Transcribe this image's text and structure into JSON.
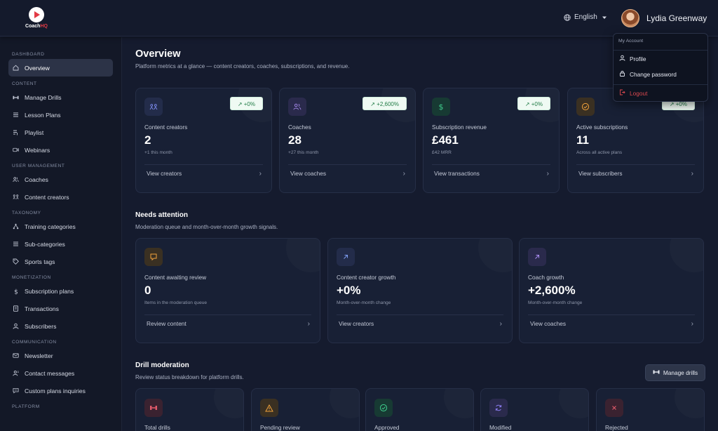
{
  "app": {
    "name_part1": "Coach",
    "name_part2": "HQ"
  },
  "header": {
    "language": "English",
    "user_name": "Lydia Greenway"
  },
  "account_menu": {
    "heading": "My Account",
    "profile": "Profile",
    "change_password": "Change password",
    "logout": "Logout"
  },
  "sidebar": {
    "sections": [
      {
        "title": "DASHBOARD",
        "items": [
          {
            "label": "Overview",
            "icon": "home-icon",
            "active": true
          }
        ]
      },
      {
        "title": "CONTENT",
        "items": [
          {
            "label": "Manage Drills",
            "icon": "dumbbell-icon"
          },
          {
            "label": "Lesson Plans",
            "icon": "list-icon"
          },
          {
            "label": "Playlist",
            "icon": "playlist-icon"
          },
          {
            "label": "Webinars",
            "icon": "video-icon"
          }
        ]
      },
      {
        "title": "USER MANAGEMENT",
        "items": [
          {
            "label": "Coaches",
            "icon": "users-icon"
          },
          {
            "label": "Content creators",
            "icon": "creators-icon"
          }
        ]
      },
      {
        "title": "TAXONOMY",
        "items": [
          {
            "label": "Training categories",
            "icon": "hierarchy-icon"
          },
          {
            "label": "Sub-categories",
            "icon": "list-icon"
          },
          {
            "label": "Sports tags",
            "icon": "tag-icon"
          }
        ]
      },
      {
        "title": "MONETIZATION",
        "items": [
          {
            "label": "Subscription plans",
            "icon": "dollar-icon"
          },
          {
            "label": "Transactions",
            "icon": "receipt-icon"
          },
          {
            "label": "Subscribers",
            "icon": "user-icon"
          }
        ]
      },
      {
        "title": "COMMUNICATION",
        "items": [
          {
            "label": "Newsletter",
            "icon": "mail-icon"
          },
          {
            "label": "Contact messages",
            "icon": "contact-icon"
          },
          {
            "label": "Custom plans inquiries",
            "icon": "chat-icon"
          }
        ]
      },
      {
        "title": "PLATFORM",
        "items": []
      }
    ]
  },
  "overview": {
    "title": "Overview",
    "subtitle": "Platform metrics at a glance — content creators, coaches, subscriptions, and revenue."
  },
  "metrics": [
    {
      "label": "Content creators",
      "value": "2",
      "note": "+1 this month",
      "badge": "↗ +0%",
      "link": "View creators",
      "icon_color": "#7d8cf0",
      "icon_bg": "#232c4a"
    },
    {
      "label": "Coaches",
      "value": "28",
      "note": "+27 this month",
      "badge": "↗ +2,600%",
      "link": "View coaches",
      "icon_color": "#a98cf0",
      "icon_bg": "#2a2a4c"
    },
    {
      "label": "Subscription revenue",
      "value": "£461",
      "note": "£42 MRR",
      "badge": "↗ +0%",
      "link": "View transactions",
      "icon_color": "#3fcf8e",
      "icon_bg": "#173a33"
    },
    {
      "label": "Active subscriptions",
      "value": "11",
      "note": "Across all active plans",
      "badge": "↗ +0%",
      "link": "View subscribers",
      "icon_color": "#f0a23c",
      "icon_bg": "#3a3022"
    }
  ],
  "attention": {
    "title": "Needs attention",
    "subtitle": "Moderation queue and month-over-month growth signals.",
    "cards": [
      {
        "label": "Content awaiting review",
        "value": "0",
        "note": "Items in the moderation queue",
        "link": "Review content",
        "icon_color": "#f0a23c",
        "icon_bg": "#3a3022"
      },
      {
        "label": "Content creator growth",
        "value": "+0%",
        "note": "Month-over-month change",
        "link": "View creators",
        "icon_color": "#7d9cf0",
        "icon_bg": "#232c4a"
      },
      {
        "label": "Coach growth",
        "value": "+2,600%",
        "note": "Month-over-month change",
        "link": "View coaches",
        "icon_color": "#a98cf0",
        "icon_bg": "#2a2a4c"
      }
    ]
  },
  "drill_moderation": {
    "title": "Drill moderation",
    "subtitle": "Review status breakdown for platform drills.",
    "button": "Manage drills",
    "cards": [
      {
        "label": "Total drills",
        "icon_color": "#e05a6a",
        "icon_bg": "#3a2230"
      },
      {
        "label": "Pending review",
        "icon_color": "#f0a23c",
        "icon_bg": "#3a3022"
      },
      {
        "label": "Approved",
        "icon_color": "#3fcf8e",
        "icon_bg": "#173a33"
      },
      {
        "label": "Modified",
        "icon_color": "#8a7cf0",
        "icon_bg": "#2a2a4c"
      },
      {
        "label": "Rejected",
        "icon_color": "#e05a6a",
        "icon_bg": "#3a2230"
      }
    ]
  }
}
